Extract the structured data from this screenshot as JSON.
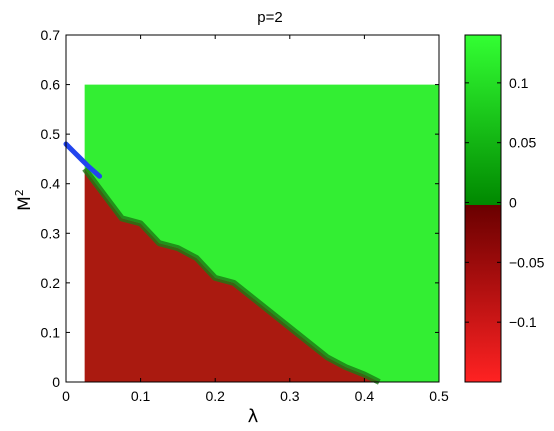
{
  "chart_data": {
    "type": "heatmap",
    "title": "p=2",
    "xlabel": "λ",
    "ylabel": "M",
    "ylabel_superscript": "2",
    "xlim": [
      0,
      0.5
    ],
    "ylim": [
      0,
      0.7
    ],
    "xticks": [
      "0",
      "0.1",
      "0.2",
      "0.3",
      "0.4",
      "0.5"
    ],
    "yticks": [
      "0",
      "0.1",
      "0.2",
      "0.3",
      "0.4",
      "0.5",
      "0.6",
      "0.7"
    ],
    "data_extent": {
      "x": [
        0.025,
        0.5
      ],
      "y": [
        0,
        0.6
      ]
    },
    "boundary": [
      [
        0.025,
        0.43
      ],
      [
        0.05,
        0.38
      ],
      [
        0.075,
        0.33
      ],
      [
        0.1,
        0.32
      ],
      [
        0.125,
        0.28
      ],
      [
        0.15,
        0.27
      ],
      [
        0.175,
        0.25
      ],
      [
        0.2,
        0.21
      ],
      [
        0.225,
        0.2
      ],
      [
        0.25,
        0.17
      ],
      [
        0.275,
        0.14
      ],
      [
        0.3,
        0.11
      ],
      [
        0.325,
        0.08
      ],
      [
        0.35,
        0.05
      ],
      [
        0.375,
        0.03
      ],
      [
        0.4,
        0.015
      ],
      [
        0.42,
        0.0
      ]
    ],
    "blue_curve": [
      [
        0.0,
        0.48
      ],
      [
        0.01,
        0.465
      ],
      [
        0.02,
        0.45
      ],
      [
        0.03,
        0.435
      ],
      [
        0.045,
        0.415
      ]
    ],
    "colorbar": {
      "ticks": [
        0.1,
        0.05,
        0,
        -0.05,
        -0.1
      ],
      "tick_labels": [
        "0.1",
        "0.05",
        "0",
        "−0.05",
        "−0.1"
      ],
      "range": [
        -0.15,
        0.14
      ],
      "colors": {
        "positive_high": "#33ff33",
        "positive_low": "#008800",
        "negative_low": "#770000",
        "negative_high": "#ff2222"
      }
    },
    "colors": {
      "curve": "#2244ee",
      "region_positive": "#33ee33",
      "region_negative": "#aa1a10"
    }
  }
}
